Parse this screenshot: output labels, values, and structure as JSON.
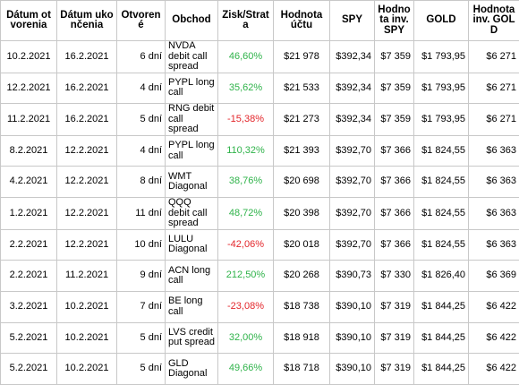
{
  "table": {
    "header": [
      "Dátum otvorenia",
      "Dátum ukončenia",
      "Otvorené",
      "Obchod",
      "Zisk/Strata",
      "Hodnota účtu",
      "SPY",
      "Hodnota inv. SPY",
      "GOLD",
      "Hodnota inv. GOLD"
    ],
    "rows": [
      [
        "10.2.2021",
        "16.2.2021",
        "6 dní",
        "NVDA debit call spread",
        "46,60%",
        "$21 978",
        "$392,34",
        "$7 359",
        "$1 793,95",
        "$6 271"
      ],
      [
        "12.2.2021",
        "16.2.2021",
        "4 dní",
        "PYPL long call",
        "35,62%",
        "$21 533",
        "$392,34",
        "$7 359",
        "$1 793,95",
        "$6 271"
      ],
      [
        "11.2.2021",
        "16.2.2021",
        "5 dní",
        "RNG debit call spread",
        "-15,38%",
        "$21 273",
        "$392,34",
        "$7 359",
        "$1 793,95",
        "$6 271"
      ],
      [
        "8.2.2021",
        "12.2.2021",
        "4 dní",
        "PYPL long call",
        "110,32%",
        "$21 393",
        "$392,70",
        "$7 366",
        "$1 824,55",
        "$6 363"
      ],
      [
        "4.2.2021",
        "12.2.2021",
        "8 dní",
        "WMT Diagonal",
        "38,76%",
        "$20 698",
        "$392,70",
        "$7 366",
        "$1 824,55",
        "$6 363"
      ],
      [
        "1.2.2021",
        "12.2.2021",
        "11 dní",
        "QQQ debit call spread",
        "48,72%",
        "$20 398",
        "$392,70",
        "$7 366",
        "$1 824,55",
        "$6 363"
      ],
      [
        "2.2.2021",
        "12.2.2021",
        "10 dní",
        "LULU Diagonal",
        "-42,06%",
        "$20 018",
        "$392,70",
        "$7 366",
        "$1 824,55",
        "$6 363"
      ],
      [
        "2.2.2021",
        "11.2.2021",
        "9 dní",
        "ACN long call",
        "212,50%",
        "$20 268",
        "$390,73",
        "$7 330",
        "$1 826,40",
        "$6 369"
      ],
      [
        "3.2.2021",
        "10.2.2021",
        "7 dní",
        "BE long call",
        "-23,08%",
        "$18 738",
        "$390,10",
        "$7 319",
        "$1 844,25",
        "$6 422"
      ],
      [
        "5.2.2021",
        "10.2.2021",
        "5 dní",
        "LVS credit put spread",
        "32,00%",
        "$18 918",
        "$390,10",
        "$7 319",
        "$1 844,25",
        "$6 422"
      ],
      [
        "5.2.2021",
        "10.2.2021",
        "5 dní",
        "GLD Diagonal",
        "49,66%",
        "$18 718",
        "$390,10",
        "$7 319",
        "$1 844,25",
        "$6 422"
      ]
    ]
  }
}
